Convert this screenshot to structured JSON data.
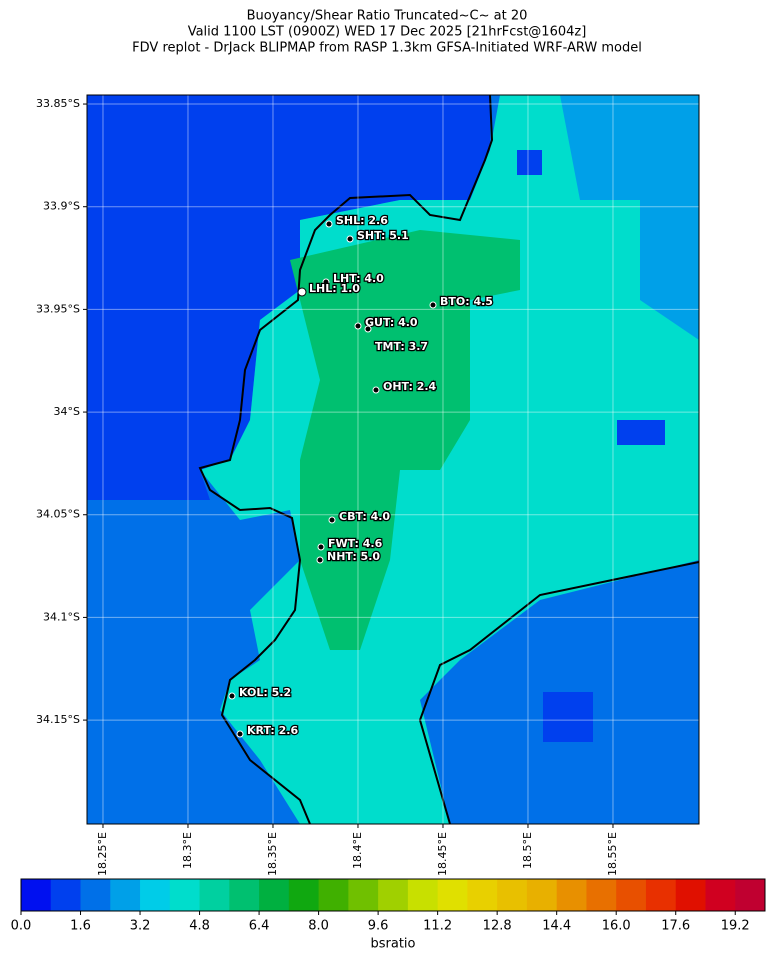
{
  "header": {
    "title_lines": [
      "Buoyancy/Shear Ratio Truncated~C~    at 20",
      "Valid 1100 LST (0900Z) WED 17 Dec 2025 [21hrFcst@1604z]",
      "FDV replot - DrJack BLIPMAP from RASP 1.3km GFSA-Initiated WRF-ARW model"
    ]
  },
  "map": {
    "xlim": [
      18.2406,
      18.6006
    ],
    "ylim": [
      -34.2006,
      -33.8456
    ],
    "yticks": [
      {
        "value": -33.85,
        "label": "33.85°S"
      },
      {
        "value": -33.9,
        "label": "33.9°S"
      },
      {
        "value": -33.95,
        "label": "33.95°S"
      },
      {
        "value": -34.0,
        "label": "34°S"
      },
      {
        "value": -34.05,
        "label": "34.05°S"
      },
      {
        "value": -34.1,
        "label": "34.1°S"
      },
      {
        "value": -34.15,
        "label": "34.15°S"
      }
    ],
    "xticks": [
      {
        "value": 18.25,
        "label": "18.25°E"
      },
      {
        "value": 18.3,
        "label": "18.3°E"
      },
      {
        "value": 18.35,
        "label": "18.35°E"
      },
      {
        "value": 18.4,
        "label": "18.4°E"
      },
      {
        "value": 18.45,
        "label": "18.45°E"
      },
      {
        "value": 18.5,
        "label": "18.5°E"
      },
      {
        "value": 18.55,
        "label": "18.55°E"
      }
    ],
    "stations": [
      "SHL: 2.6",
      "SHT: 5.1",
      "LHT: 4.0",
      "LHL: 1.0",
      "BTO: 4.5",
      "GUT: 4.0",
      "TMT: 3.7",
      "OHT: 2.4",
      "CBT: 4.0",
      "FWT: 4.6",
      "NHT: 5.0",
      "KOL: 5.2",
      "KRT: 2.6"
    ]
  },
  "colorbar": {
    "label": "bsratio",
    "lim": [
      0,
      20
    ],
    "ticks": [
      {
        "value": 0,
        "label": "0.0"
      },
      1.6,
      3.2,
      4.8,
      6.4,
      {
        "value": 8,
        "label": "8.0"
      },
      9.6,
      11.2,
      12.8,
      14.4,
      {
        "value": 16,
        "label": "16.0"
      },
      17.6,
      19.2
    ],
    "colors": [
      "#0010f0",
      "#0040ee",
      "#0070e8",
      "#00a0e8",
      "#00cce8",
      "#00ddcc",
      "#00d0a0",
      "#00c070",
      "#00b040",
      "#10a810",
      "#40b000",
      "#70c000",
      "#a0d000",
      "#c8e000",
      "#e0e000",
      "#e8d000",
      "#e8c000",
      "#e8b000",
      "#e89000",
      "#e87000",
      "#e85000",
      "#e83000",
      "#e01000",
      "#d00020",
      "#c00030"
    ]
  }
}
